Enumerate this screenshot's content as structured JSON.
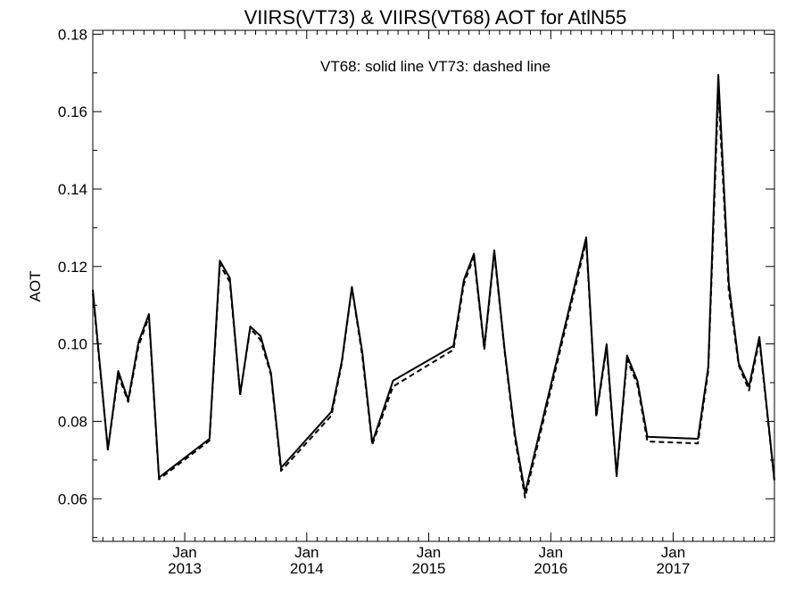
{
  "chart_data": {
    "type": "line",
    "title": "VIIRS(VT73) & VIIRS(VT68)  AOT for AtlN55",
    "annotation": "VT68: solid line   VT73: dashed line",
    "ylabel": "AOT",
    "xlabel": "",
    "ylim": [
      0.049,
      0.181
    ],
    "xlim": [
      "2012-04-01",
      "2017-10-31"
    ],
    "grid": false,
    "y_ticks": [
      "0.06",
      "0.08",
      "0.10",
      "0.12",
      "0.14",
      "0.16",
      "0.18"
    ],
    "x_ticks": [
      {
        "month": "Jan",
        "year": "2013",
        "date": "2013-01-01"
      },
      {
        "month": "Jan",
        "year": "2014",
        "date": "2014-01-01"
      },
      {
        "month": "Jan",
        "year": "2015",
        "date": "2015-01-01"
      },
      {
        "month": "Jan",
        "year": "2016",
        "date": "2016-01-01"
      },
      {
        "month": "Jan",
        "year": "2017",
        "date": "2017-01-01"
      }
    ],
    "series": [
      {
        "name": "VT68",
        "style": "solid",
        "color": "#000000",
        "points": [
          [
            "2012-04-01",
            0.114
          ],
          [
            "2012-05-16",
            0.0727
          ],
          [
            "2012-06-16",
            0.093
          ],
          [
            "2012-07-16",
            0.0855
          ],
          [
            "2012-08-16",
            0.1005
          ],
          [
            "2012-09-16",
            0.1077
          ],
          [
            "2012-10-16",
            0.0655
          ],
          [
            "2013-03-16",
            0.0755
          ],
          [
            "2013-04-16",
            0.1215
          ],
          [
            "2013-05-16",
            0.117
          ],
          [
            "2013-06-16",
            0.087
          ],
          [
            "2013-07-16",
            0.1045
          ],
          [
            "2013-08-16",
            0.102
          ],
          [
            "2013-09-16",
            0.0925
          ],
          [
            "2013-10-16",
            0.068
          ],
          [
            "2014-03-16",
            0.0825
          ],
          [
            "2014-04-16",
            0.0955
          ],
          [
            "2014-05-16",
            0.1147
          ],
          [
            "2014-06-16",
            0.098
          ],
          [
            "2014-07-16",
            0.0745
          ],
          [
            "2014-08-16",
            0.0825
          ],
          [
            "2014-09-16",
            0.0905
          ],
          [
            "2015-03-16",
            0.0995
          ],
          [
            "2015-04-16",
            0.1165
          ],
          [
            "2015-05-16",
            0.1233
          ],
          [
            "2015-06-16",
            0.099
          ],
          [
            "2015-07-16",
            0.1242
          ],
          [
            "2015-08-16",
            0.0985
          ],
          [
            "2015-09-16",
            0.0765
          ],
          [
            "2015-10-16",
            0.0615
          ],
          [
            "2016-04-16",
            0.1275
          ],
          [
            "2016-05-16",
            0.0815
          ],
          [
            "2016-06-16",
            0.0999
          ],
          [
            "2016-07-16",
            0.0662
          ],
          [
            "2016-08-16",
            0.097
          ],
          [
            "2016-09-16",
            0.0905
          ],
          [
            "2016-10-16",
            0.076
          ],
          [
            "2017-03-16",
            0.0755
          ],
          [
            "2017-04-16",
            0.094
          ],
          [
            "2017-05-16",
            0.1695
          ],
          [
            "2017-06-16",
            0.116
          ],
          [
            "2017-07-16",
            0.095
          ],
          [
            "2017-08-16",
            0.089
          ],
          [
            "2017-09-16",
            0.1018
          ],
          [
            "2017-10-31",
            0.0648
          ]
        ]
      },
      {
        "name": "VT73",
        "style": "dashed",
        "color": "#000000",
        "points": [
          [
            "2012-04-01",
            0.113
          ],
          [
            "2012-05-16",
            0.0727
          ],
          [
            "2012-06-16",
            0.092
          ],
          [
            "2012-07-16",
            0.085
          ],
          [
            "2012-08-16",
            0.0995
          ],
          [
            "2012-09-16",
            0.107
          ],
          [
            "2012-10-16",
            0.065
          ],
          [
            "2013-03-16",
            0.075
          ],
          [
            "2013-04-16",
            0.1205
          ],
          [
            "2013-05-16",
            0.116
          ],
          [
            "2013-06-16",
            0.087
          ],
          [
            "2013-07-16",
            0.104
          ],
          [
            "2013-08-16",
            0.101
          ],
          [
            "2013-09-16",
            0.092
          ],
          [
            "2013-10-16",
            0.0672
          ],
          [
            "2014-03-16",
            0.0815
          ],
          [
            "2014-04-16",
            0.095
          ],
          [
            "2014-05-16",
            0.1145
          ],
          [
            "2014-06-16",
            0.097
          ],
          [
            "2014-07-16",
            0.074
          ],
          [
            "2014-08-16",
            0.0815
          ],
          [
            "2014-09-16",
            0.089
          ],
          [
            "2015-03-16",
            0.0985
          ],
          [
            "2015-04-16",
            0.1155
          ],
          [
            "2015-05-16",
            0.1225
          ],
          [
            "2015-06-16",
            0.0985
          ],
          [
            "2015-07-16",
            0.1235
          ],
          [
            "2015-08-16",
            0.098
          ],
          [
            "2015-09-16",
            0.0755
          ],
          [
            "2015-10-16",
            0.0603
          ],
          [
            "2016-04-16",
            0.1265
          ],
          [
            "2016-05-16",
            0.0812
          ],
          [
            "2016-06-16",
            0.099
          ],
          [
            "2016-07-16",
            0.0658
          ],
          [
            "2016-08-16",
            0.096
          ],
          [
            "2016-09-16",
            0.0895
          ],
          [
            "2016-10-16",
            0.0748
          ],
          [
            "2017-03-16",
            0.0743
          ],
          [
            "2017-04-16",
            0.093
          ],
          [
            "2017-05-16",
            0.1655
          ],
          [
            "2017-06-16",
            0.114
          ],
          [
            "2017-07-16",
            0.0945
          ],
          [
            "2017-08-16",
            0.088
          ],
          [
            "2017-09-16",
            0.101
          ],
          [
            "2017-10-31",
            0.0645
          ]
        ]
      }
    ]
  }
}
